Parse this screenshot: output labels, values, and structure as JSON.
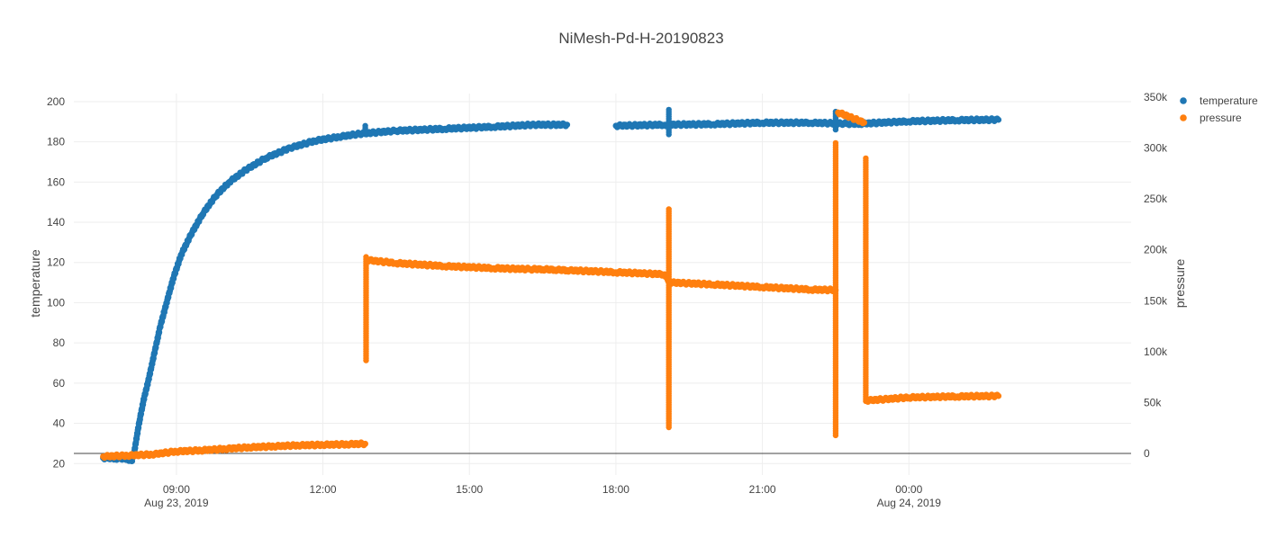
{
  "chart_data": {
    "type": "scatter",
    "title": "NiMesh-Pd-H-20190823",
    "x_axis": {
      "type": "date",
      "range": [
        "2019-08-23T06:54",
        "2019-08-24T04:33"
      ],
      "ticks": [
        {
          "value": "2019-08-23T09:00",
          "label": "09:00",
          "sublabel": "Aug 23, 2019"
        },
        {
          "value": "2019-08-23T12:00",
          "label": "12:00",
          "sublabel": ""
        },
        {
          "value": "2019-08-23T15:00",
          "label": "15:00",
          "sublabel": ""
        },
        {
          "value": "2019-08-23T18:00",
          "label": "18:00",
          "sublabel": ""
        },
        {
          "value": "2019-08-23T21:00",
          "label": "21:00",
          "sublabel": ""
        },
        {
          "value": "2019-08-24T00:00",
          "label": "00:00",
          "sublabel": "Aug 24, 2019"
        }
      ],
      "grid": true
    },
    "y_axis_left": {
      "label": "temperature",
      "range": [
        14.3,
        204
      ],
      "ticks": [
        20,
        40,
        60,
        80,
        100,
        120,
        140,
        160,
        180,
        200
      ],
      "tick_labels": [
        "20",
        "40",
        "60",
        "80",
        "100",
        "120",
        "140",
        "160",
        "180",
        "200"
      ],
      "grid": true
    },
    "y_axis_right": {
      "label": "pressure",
      "range": [
        0,
        350000
      ],
      "ticks": [
        0,
        50000,
        100000,
        150000,
        200000,
        250000,
        300000,
        350000
      ],
      "tick_labels": [
        "0",
        "50k",
        "100k",
        "150k",
        "200k",
        "250k",
        "300k",
        "350k"
      ]
    },
    "legend": {
      "placement": "top-right"
    },
    "series": [
      {
        "name": "temperature",
        "color": "#1f77b4",
        "axis": "left",
        "points": [
          [
            "2019-08-23T07:30",
            22.8
          ],
          [
            "2019-08-23T07:45",
            22.6
          ],
          [
            "2019-08-23T08:00",
            22.4
          ],
          [
            "2019-08-23T08:05",
            21.2
          ],
          [
            "2019-08-23T08:08",
            25.0
          ],
          [
            "2019-08-23T08:12",
            35.0
          ],
          [
            "2019-08-23T08:15",
            42.0
          ],
          [
            "2019-08-23T08:20",
            52.0
          ],
          [
            "2019-08-23T08:26",
            62.0
          ],
          [
            "2019-08-23T08:33",
            75.0
          ],
          [
            "2019-08-23T08:40",
            88.0
          ],
          [
            "2019-08-23T08:48",
            100.0
          ],
          [
            "2019-08-23T08:56",
            112.0
          ],
          [
            "2019-08-23T09:06",
            124.0
          ],
          [
            "2019-08-23T09:18",
            134.0
          ],
          [
            "2019-08-23T09:32",
            144.0
          ],
          [
            "2019-08-23T09:48",
            153.0
          ],
          [
            "2019-08-23T10:05",
            160.0
          ],
          [
            "2019-08-23T10:25",
            166.0
          ],
          [
            "2019-08-23T10:50",
            172.0
          ],
          [
            "2019-08-23T11:20",
            177.0
          ],
          [
            "2019-08-23T11:50",
            180.5
          ],
          [
            "2019-08-23T12:20",
            182.5
          ],
          [
            "2019-08-23T12:45",
            184.0
          ],
          [
            "2019-08-23T13:30",
            185.5
          ],
          [
            "2019-08-23T14:30",
            186.5
          ],
          [
            "2019-08-23T15:30",
            187.5
          ],
          [
            "2019-08-23T16:20",
            188.5
          ],
          [
            "2019-08-23T17:00",
            188.5
          ],
          [
            "2019-08-23T18:00",
            188.0
          ],
          [
            "2019-08-23T19:00",
            188.5
          ],
          [
            "2019-08-23T20:00",
            188.8
          ],
          [
            "2019-08-23T21:00",
            189.5
          ],
          [
            "2019-08-23T22:00",
            189.5
          ],
          [
            "2019-08-23T22:45",
            189.0
          ],
          [
            "2019-08-23T23:00",
            189.0
          ],
          [
            "2019-08-24T00:00",
            190.2
          ],
          [
            "2019-08-24T01:00",
            190.8
          ],
          [
            "2019-08-24T01:50",
            191.0
          ]
        ],
        "spikes": [
          [
            "2019-08-23T12:52",
            184.5,
            188.0
          ],
          [
            "2019-08-23T19:05",
            183.5,
            196.0
          ],
          [
            "2019-08-23T22:30",
            185.0,
            195.0
          ]
        ]
      },
      {
        "name": "pressure",
        "color": "#ff7f0e",
        "axis": "right",
        "points": [
          [
            "2019-08-23T07:30",
            -3000
          ],
          [
            "2019-08-23T08:00",
            -2000
          ],
          [
            "2019-08-23T08:30",
            -1000
          ],
          [
            "2019-08-23T09:00",
            2000
          ],
          [
            "2019-08-23T09:30",
            3000
          ],
          [
            "2019-08-23T10:00",
            4500
          ],
          [
            "2019-08-23T10:30",
            6000
          ],
          [
            "2019-08-23T11:00",
            7000
          ],
          [
            "2019-08-23T11:30",
            8000
          ],
          [
            "2019-08-23T12:00",
            8500
          ],
          [
            "2019-08-23T12:30",
            9000
          ],
          [
            "2019-08-23T12:52",
            9500
          ],
          [
            "2019-08-23T12:54",
            190000
          ],
          [
            "2019-08-23T13:30",
            187000
          ],
          [
            "2019-08-23T14:30",
            184000
          ],
          [
            "2019-08-23T15:30",
            182000
          ],
          [
            "2019-08-23T16:15",
            181000
          ],
          [
            "2019-08-23T16:30",
            181000
          ],
          [
            "2019-08-23T16:45",
            180500
          ],
          [
            "2019-08-23T17:00",
            180000
          ],
          [
            "2019-08-23T18:00",
            178000
          ],
          [
            "2019-08-23T19:00",
            176000
          ],
          [
            "2019-08-23T19:06",
            168000
          ],
          [
            "2019-08-23T20:00",
            166000
          ],
          [
            "2019-08-23T21:00",
            163500
          ],
          [
            "2019-08-23T22:00",
            161000
          ],
          [
            "2019-08-23T22:30",
            160500
          ],
          [
            "2019-08-23T22:33",
            335000
          ],
          [
            "2019-08-23T23:05",
            325000
          ],
          [
            "2019-08-23T23:08",
            52000
          ],
          [
            "2019-08-24T00:00",
            55000
          ],
          [
            "2019-08-24T01:00",
            56000
          ],
          [
            "2019-08-24T01:50",
            56500
          ]
        ],
        "spikes": [
          [
            "2019-08-23T12:53",
            90000,
            193000
          ],
          [
            "2019-08-23T19:05",
            25000,
            240000
          ],
          [
            "2019-08-23T22:30",
            17000,
            305000
          ],
          [
            "2019-08-23T23:07",
            50000,
            290000
          ]
        ]
      }
    ]
  }
}
